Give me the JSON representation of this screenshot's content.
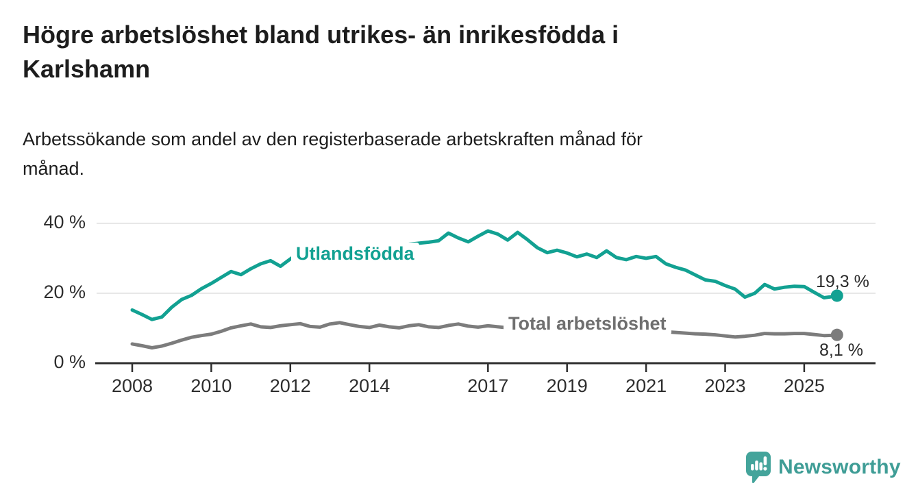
{
  "header": {
    "title_line1": "Högre arbetslöshet bland utrikes- än inrikesfödda i",
    "title_line2": "Karlshamn",
    "subtitle_line1": "Arbetssökande som andel av den registerbaserade arbetskraften månad för",
    "subtitle_line2": "månad."
  },
  "chart_data": {
    "type": "line",
    "title": "Högre arbetslöshet bland utrikes- än inrikesfödda i Karlshamn",
    "subtitle": "Arbetssökande som andel av den registerbaserade arbetskraften månad för månad.",
    "x_unit": "year (decimal, quarterly samples)",
    "y_unit": "percent of registered labour force",
    "xlim": [
      2007.1,
      2026.8
    ],
    "ylim": [
      0,
      44
    ],
    "grid": "horizontal",
    "yticks": [
      0,
      20,
      40
    ],
    "ytick_labels": [
      "0 %",
      "20 %",
      "40 %"
    ],
    "xticks": [
      2008,
      2010,
      2012,
      2014,
      2017,
      2019,
      2021,
      2023,
      2025
    ],
    "grid_color": "#dcdcdc",
    "axis_color": "#2e2e2e",
    "x": [
      2008.0,
      2008.25,
      2008.5,
      2008.75,
      2009.0,
      2009.25,
      2009.5,
      2009.75,
      2010.0,
      2010.25,
      2010.5,
      2010.75,
      2011.0,
      2011.25,
      2011.5,
      2011.75,
      2012.0,
      2012.25,
      2012.5,
      2012.75,
      2013.0,
      2013.25,
      2013.5,
      2013.75,
      2014.0,
      2014.25,
      2014.5,
      2014.75,
      2015.0,
      2015.25,
      2015.5,
      2015.75,
      2016.0,
      2016.25,
      2016.5,
      2016.75,
      2017.0,
      2017.25,
      2017.5,
      2017.75,
      2018.0,
      2018.25,
      2018.5,
      2018.75,
      2019.0,
      2019.25,
      2019.5,
      2019.75,
      2020.0,
      2020.25,
      2020.5,
      2020.75,
      2021.0,
      2021.25,
      2021.5,
      2021.75,
      2022.0,
      2022.25,
      2022.5,
      2022.75,
      2023.0,
      2023.25,
      2023.5,
      2023.75,
      2024.0,
      2024.25,
      2024.5,
      2024.75,
      2025.0,
      2025.25,
      2025.5,
      2025.75,
      2025.83
    ],
    "series": [
      {
        "name": "Utlandsfödda",
        "color": "#12a192",
        "end_label": "19,3 %",
        "end_value": 19.3,
        "values": [
          15.2,
          13.9,
          12.5,
          13.2,
          16.0,
          18.2,
          19.4,
          21.3,
          22.8,
          24.5,
          26.2,
          25.3,
          27.0,
          28.4,
          29.3,
          27.7,
          29.8,
          31.8,
          31.0,
          31.5,
          32.0,
          32.4,
          32.2,
          32.8,
          33.0,
          33.4,
          33.2,
          33.8,
          34.0,
          34.3,
          34.6,
          35.0,
          37.2,
          35.8,
          34.7,
          36.3,
          37.8,
          36.9,
          35.2,
          37.4,
          35.3,
          33.0,
          31.6,
          32.3,
          31.5,
          30.4,
          31.2,
          30.2,
          32.1,
          30.2,
          29.6,
          30.5,
          30.0,
          30.5,
          28.4,
          27.4,
          26.6,
          25.2,
          23.8,
          23.4,
          22.2,
          21.2,
          18.9,
          20.0,
          22.5,
          21.2,
          21.7,
          22.0,
          21.9,
          20.3,
          18.7,
          19.1,
          19.3
        ]
      },
      {
        "name": "Total arbetslöshet",
        "color": "#7c7c7c",
        "end_label": "8,1 %",
        "end_value": 8.1,
        "values": [
          5.5,
          5.0,
          4.4,
          4.9,
          5.7,
          6.6,
          7.4,
          7.9,
          8.3,
          9.1,
          10.1,
          10.7,
          11.2,
          10.4,
          10.2,
          10.7,
          11.0,
          11.3,
          10.5,
          10.3,
          11.2,
          11.6,
          11.0,
          10.5,
          10.2,
          10.9,
          10.4,
          10.1,
          10.7,
          11.0,
          10.4,
          10.2,
          10.8,
          11.2,
          10.6,
          10.3,
          10.7,
          10.4,
          10.1,
          9.9,
          9.8,
          9.6,
          9.5,
          9.5,
          9.4,
          9.3,
          9.2,
          9.4,
          9.8,
          9.9,
          9.7,
          9.5,
          9.4,
          9.2,
          9.0,
          8.8,
          8.6,
          8.4,
          8.3,
          8.1,
          7.8,
          7.5,
          7.7,
          8.0,
          8.5,
          8.4,
          8.4,
          8.5,
          8.5,
          8.2,
          7.9,
          8.0,
          8.1
        ]
      }
    ]
  },
  "footer": {
    "brand": "Newsworthy"
  }
}
